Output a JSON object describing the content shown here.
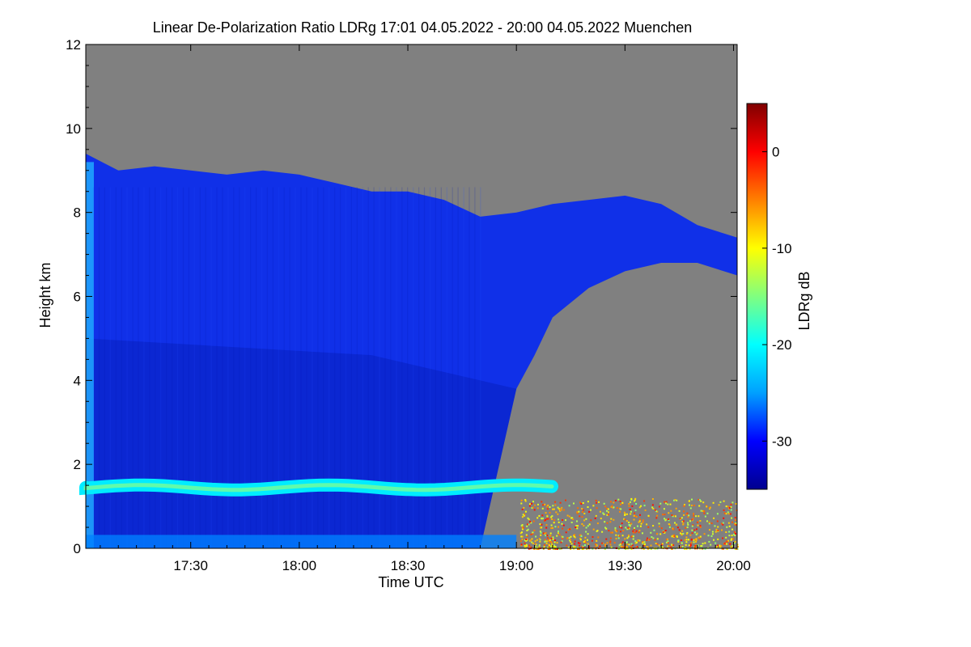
{
  "chart_data": {
    "type": "heatmap",
    "title": "Linear De-Polarization Ratio LDRg   17:01 04.05.2022 - 20:00 04.05.2022 Muenchen",
    "xlabel": "Time UTC",
    "ylabel": "Height km",
    "x_ticks": [
      "17:30",
      "18:00",
      "18:30",
      "19:00",
      "19:30",
      "20:00"
    ],
    "x_tick_values_min": [
      1050,
      1080,
      1110,
      1140,
      1170,
      1200
    ],
    "xlim_min": [
      1021,
      1201
    ],
    "y_ticks": [
      0,
      2,
      4,
      6,
      8,
      10,
      12
    ],
    "ylim": [
      0,
      12
    ],
    "colorbar": {
      "label": "LDRg dB",
      "ticks": [
        0,
        -10,
        -20,
        -30
      ],
      "range": [
        -35,
        5
      ],
      "colormap": [
        "#00008f",
        "#0000ff",
        "#00a0ff",
        "#00ffff",
        "#80ff80",
        "#ffff00",
        "#ff8000",
        "#ff0000",
        "#800000"
      ]
    },
    "no_data_color": "#808080",
    "cloud_top_km": [
      [
        1021,
        9.4
      ],
      [
        1030,
        9.0
      ],
      [
        1040,
        9.1
      ],
      [
        1050,
        9.0
      ],
      [
        1060,
        8.9
      ],
      [
        1070,
        9.0
      ],
      [
        1080,
        8.9
      ],
      [
        1090,
        8.7
      ],
      [
        1100,
        8.5
      ],
      [
        1110,
        8.5
      ],
      [
        1120,
        8.3
      ],
      [
        1130,
        7.9
      ],
      [
        1140,
        8.0
      ],
      [
        1150,
        8.2
      ],
      [
        1160,
        8.3
      ],
      [
        1170,
        8.4
      ],
      [
        1180,
        8.2
      ],
      [
        1190,
        7.7
      ],
      [
        1201,
        7.4
      ]
    ],
    "lower_boundary_km": [
      [
        1021,
        0
      ],
      [
        1130,
        0
      ],
      [
        1140,
        3.8
      ],
      [
        1145,
        4.6
      ],
      [
        1150,
        5.5
      ],
      [
        1160,
        6.2
      ],
      [
        1170,
        6.6
      ],
      [
        1180,
        6.8
      ],
      [
        1190,
        6.8
      ],
      [
        1201,
        6.5
      ]
    ],
    "aerosol_layer": {
      "height_km": 1.45,
      "ldr_db": -21,
      "end_min": 1152
    },
    "near_ground_layer": {
      "height_km": 0.2,
      "ldr_db": -26
    },
    "ground_clutter": {
      "start_min": 1141,
      "end_min": 1201,
      "max_height_km": 1.2,
      "ldr_db_range": [
        -15,
        0
      ]
    }
  }
}
